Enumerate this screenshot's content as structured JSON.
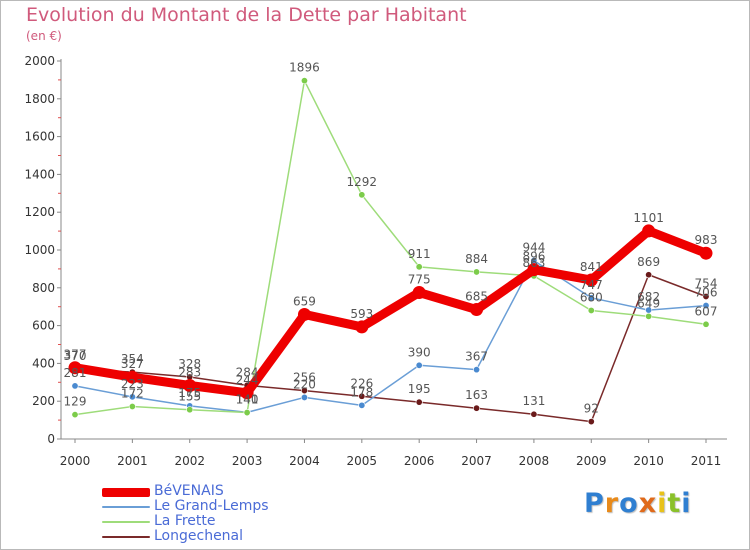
{
  "title": "Evolution du Montant de la Dette par Habitant",
  "subtitle": "(en €)",
  "logo": {
    "text": "Proxiti",
    "letter_colors": [
      "#2f7fd1",
      "#e88a1a",
      "#2f7fd1",
      "#e06a1a",
      "#e8c21a",
      "#8ac12a",
      "#2f7fd1"
    ]
  },
  "chart_data": {
    "type": "line",
    "x": [
      "2000",
      "2001",
      "2002",
      "2003",
      "2004",
      "2005",
      "2006",
      "2007",
      "2008",
      "2009",
      "2010",
      "2011"
    ],
    "ylim": [
      0,
      2000
    ],
    "yticks": [
      "0",
      "200",
      "400",
      "600",
      "800",
      "1000",
      "1200",
      "1400",
      "1600",
      "1800",
      "2000"
    ],
    "grid": false,
    "legend_position": "bottom-left",
    "series": [
      {
        "name": "Longechenal",
        "color": "#7a2a2a",
        "marker": "#6a1a1a",
        "values": [
          370,
          354,
          328,
          284,
          256,
          226,
          195,
          163,
          131,
          92,
          869,
          754
        ],
        "labels": [
          "370",
          "354",
          "328",
          "284",
          "256",
          "226",
          "195",
          "163",
          "131",
          "92",
          "869",
          "754"
        ]
      },
      {
        "name": "Le Grand-Lemps",
        "color": "#6a9ed6",
        "marker": "#4a8ad0",
        "values": [
          281,
          223,
          175,
          141,
          220,
          178,
          390,
          367,
          944,
          747,
          682,
          706
        ],
        "labels": [
          "281",
          "223",
          "175",
          "141",
          "220",
          "178",
          "390",
          "367",
          "944",
          "747",
          "682",
          "706"
        ]
      },
      {
        "name": "La Frette",
        "color": "#9edc7a",
        "marker": "#7ccc4a",
        "values": [
          129,
          172,
          155,
          140,
          1896,
          1292,
          911,
          884,
          863,
          680,
          649,
          607
        ],
        "labels": [
          "129",
          "172",
          "155",
          "140",
          "1896",
          "1292",
          "911",
          "884",
          "863",
          "680",
          "649",
          "607"
        ]
      },
      {
        "name": "BéVENAIS",
        "color": "#ee0000",
        "marker": "#ee0000",
        "values": [
          377,
          327,
          283,
          244,
          659,
          593,
          775,
          685,
          896,
          841,
          1101,
          983
        ],
        "labels": [
          "377",
          "327",
          "283",
          "244",
          "659",
          "593",
          "775",
          "685",
          "896",
          "841",
          "1101",
          "983"
        ]
      }
    ],
    "legend_order": [
      "BéVENAIS",
      "Le Grand-Lemps",
      "La Frette",
      "Longechenal"
    ]
  }
}
